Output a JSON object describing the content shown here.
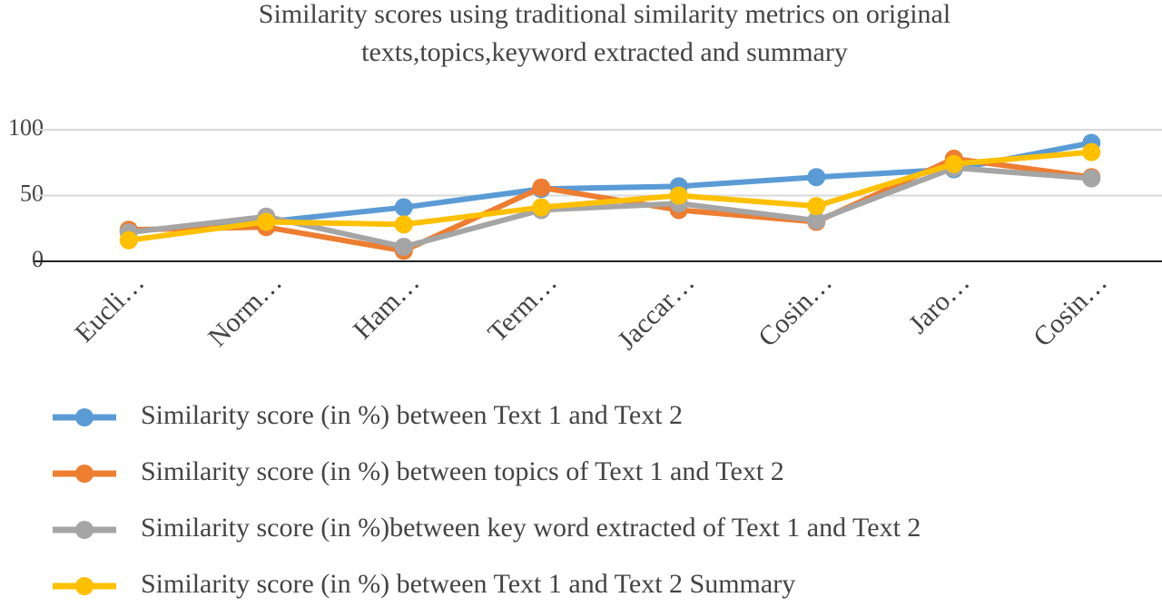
{
  "chart_data": {
    "type": "line",
    "title": [
      "Similarity scores  using traditional similarity metrics on original",
      "texts,topics,keyword extracted and summary"
    ],
    "categories": [
      "Eucli…",
      "Norm…",
      "Ham…",
      "Term…",
      "Jaccar…",
      "Cosin…",
      "Jaro…",
      "Cosin…"
    ],
    "series": [
      {
        "name": "Similarity score (in %) between Text 1 and Text 2",
        "color": "#5b9bd5",
        "values": [
          23,
          30,
          41,
          55,
          57,
          64,
          70,
          90
        ]
      },
      {
        "name": "Similarity score (in %) between topics of Text 1 and Text 2",
        "color": "#ed7d31",
        "values": [
          24,
          26,
          8,
          56,
          39,
          30,
          78,
          64
        ]
      },
      {
        "name": "Similarity score (in %)between key word extracted of Text 1 and Text 2",
        "color": "#a5a5a5",
        "values": [
          22,
          34,
          11,
          39,
          44,
          31,
          71,
          63
        ]
      },
      {
        "name": "Similarity score (in %) between Text 1 and Text 2 Summary",
        "color": "#ffc000",
        "values": [
          16,
          30,
          28,
          41,
          50,
          42,
          74,
          83
        ]
      }
    ],
    "ylim": [
      0,
      100
    ],
    "yticks": [
      0,
      50,
      100
    ],
    "grid": true,
    "legend": "bottom"
  }
}
